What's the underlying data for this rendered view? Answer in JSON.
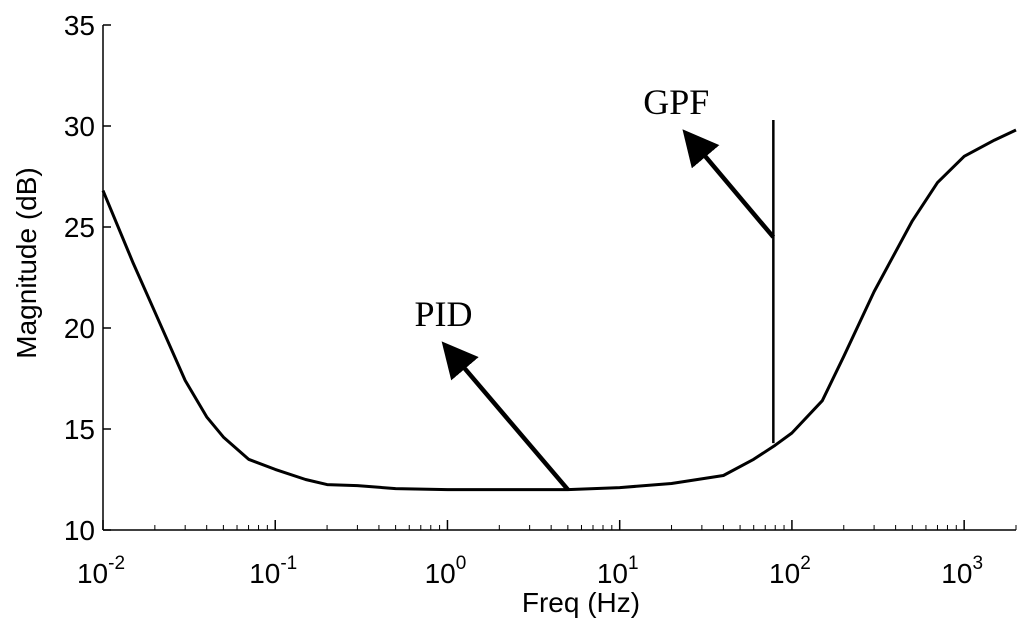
{
  "chart_data": {
    "type": "line",
    "title": "",
    "xlabel": "Freq (Hz)",
    "ylabel": "Magnitude (dB)",
    "x_scale": "log",
    "xlim": [
      0.01,
      2000
    ],
    "ylim": [
      10,
      35
    ],
    "grid": false,
    "x_ticks": [
      {
        "value": 0.01,
        "base": "10",
        "exp": "-2"
      },
      {
        "value": 0.1,
        "base": "10",
        "exp": "-1"
      },
      {
        "value": 1,
        "base": "10",
        "exp": "0"
      },
      {
        "value": 10,
        "base": "10",
        "exp": "1"
      },
      {
        "value": 100,
        "base": "10",
        "exp": "2"
      },
      {
        "value": 1000,
        "base": "10",
        "exp": "3"
      }
    ],
    "y_ticks": [
      "10",
      "15",
      "20",
      "25",
      "30",
      "35"
    ],
    "series": [
      {
        "x": [
          0.01,
          0.015,
          0.02,
          0.03,
          0.04,
          0.05,
          0.07,
          0.1,
          0.15,
          0.2,
          0.3,
          0.5,
          1,
          2,
          5,
          10,
          20,
          40,
          60,
          80,
          100,
          150,
          200,
          300,
          500,
          700,
          1000,
          1500,
          2000
        ],
        "y": [
          26.8,
          23.2,
          20.8,
          17.4,
          15.6,
          14.6,
          13.5,
          13.0,
          12.5,
          12.25,
          12.2,
          12.05,
          12.0,
          12.0,
          12.0,
          12.1,
          12.3,
          12.7,
          13.5,
          14.2,
          14.8,
          16.4,
          18.6,
          21.8,
          25.3,
          27.2,
          28.5,
          29.3,
          29.8
        ]
      }
    ],
    "annotations": [
      {
        "label": "PID",
        "arrow_tail": [
          5,
          12.0
        ],
        "arrow_head": [
          1.0,
          19.0
        ]
      },
      {
        "label": "GPF",
        "arrow_tail": [
          78,
          24.5
        ],
        "arrow_head": [
          25,
          29.5
        ]
      }
    ],
    "gpf_line": {
      "x": 78,
      "y_from": 14.3,
      "y_to": 30.3
    }
  }
}
